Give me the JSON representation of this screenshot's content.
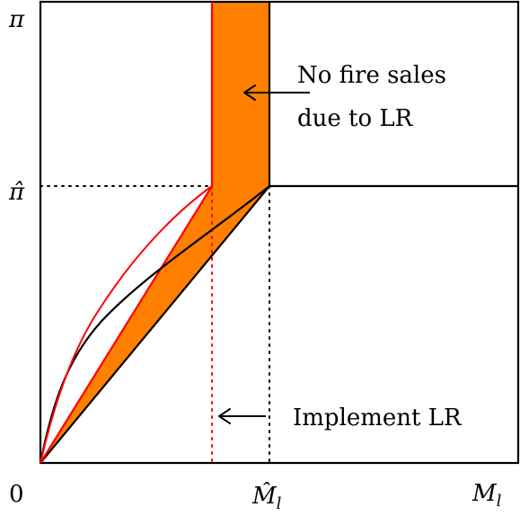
{
  "axes": {
    "y_top_label": "π",
    "y_mid_label": "π̂",
    "origin_label": "0",
    "x_mid_label_main": "M̂",
    "x_mid_label_sub": "l",
    "x_end_label_main": "M",
    "x_end_label_sub": "l"
  },
  "annotations": {
    "no_fire_sales_line1": "No fire sales",
    "no_fire_sales_line2": "due to LR",
    "implement_lr": "Implement LR"
  },
  "colors": {
    "shaded_region": "#ff7f00",
    "lr_boundary": "#ff0000",
    "outline": "#000000"
  }
}
